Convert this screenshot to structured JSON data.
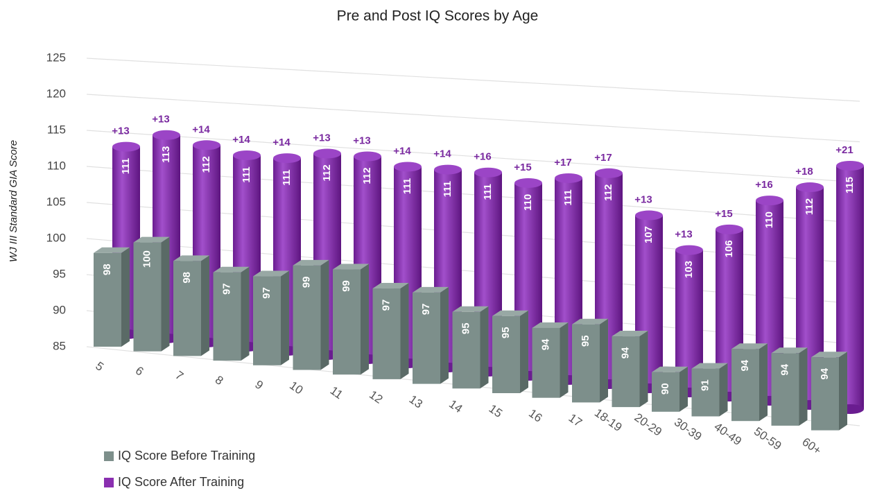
{
  "chart_data": {
    "type": "bar3d",
    "title": "Pre and Post IQ Scores by Age",
    "y_label": "WJ III Standard GIA Score",
    "categories": [
      "5",
      "6",
      "7",
      "8",
      "9",
      "10",
      "11",
      "12",
      "13",
      "14",
      "15",
      "16",
      "17",
      "18-19",
      "20-29",
      "30-39",
      "40-49",
      "50-59",
      "60+"
    ],
    "series": [
      {
        "name": "IQ Score Before Training",
        "color": "#7d8f8b",
        "values": [
          98,
          100,
          98,
          97,
          97,
          99,
          99,
          97,
          97,
          95,
          95,
          94,
          95,
          94,
          90,
          91,
          94,
          94,
          94
        ]
      },
      {
        "name": "IQ Score After Training",
        "color": "#8a2fb0",
        "values": [
          111,
          113,
          112,
          111,
          111,
          112,
          112,
          111,
          111,
          111,
          110,
          111,
          112,
          107,
          103,
          106,
          110,
          112,
          115
        ]
      }
    ],
    "annotations": [
      "+13",
      "+13",
      "+14",
      "+14",
      "+14",
      "+13",
      "+13",
      "+14",
      "+14",
      "+16",
      "+15",
      "+17",
      "+17",
      "+13",
      "+13",
      "+15",
      "+16",
      "+18",
      "+21"
    ],
    "ylim": [
      85,
      125
    ],
    "yticks": [
      85,
      90,
      95,
      100,
      105,
      110,
      115,
      120,
      125
    ],
    "grid": true,
    "legend": "bottom-left"
  }
}
